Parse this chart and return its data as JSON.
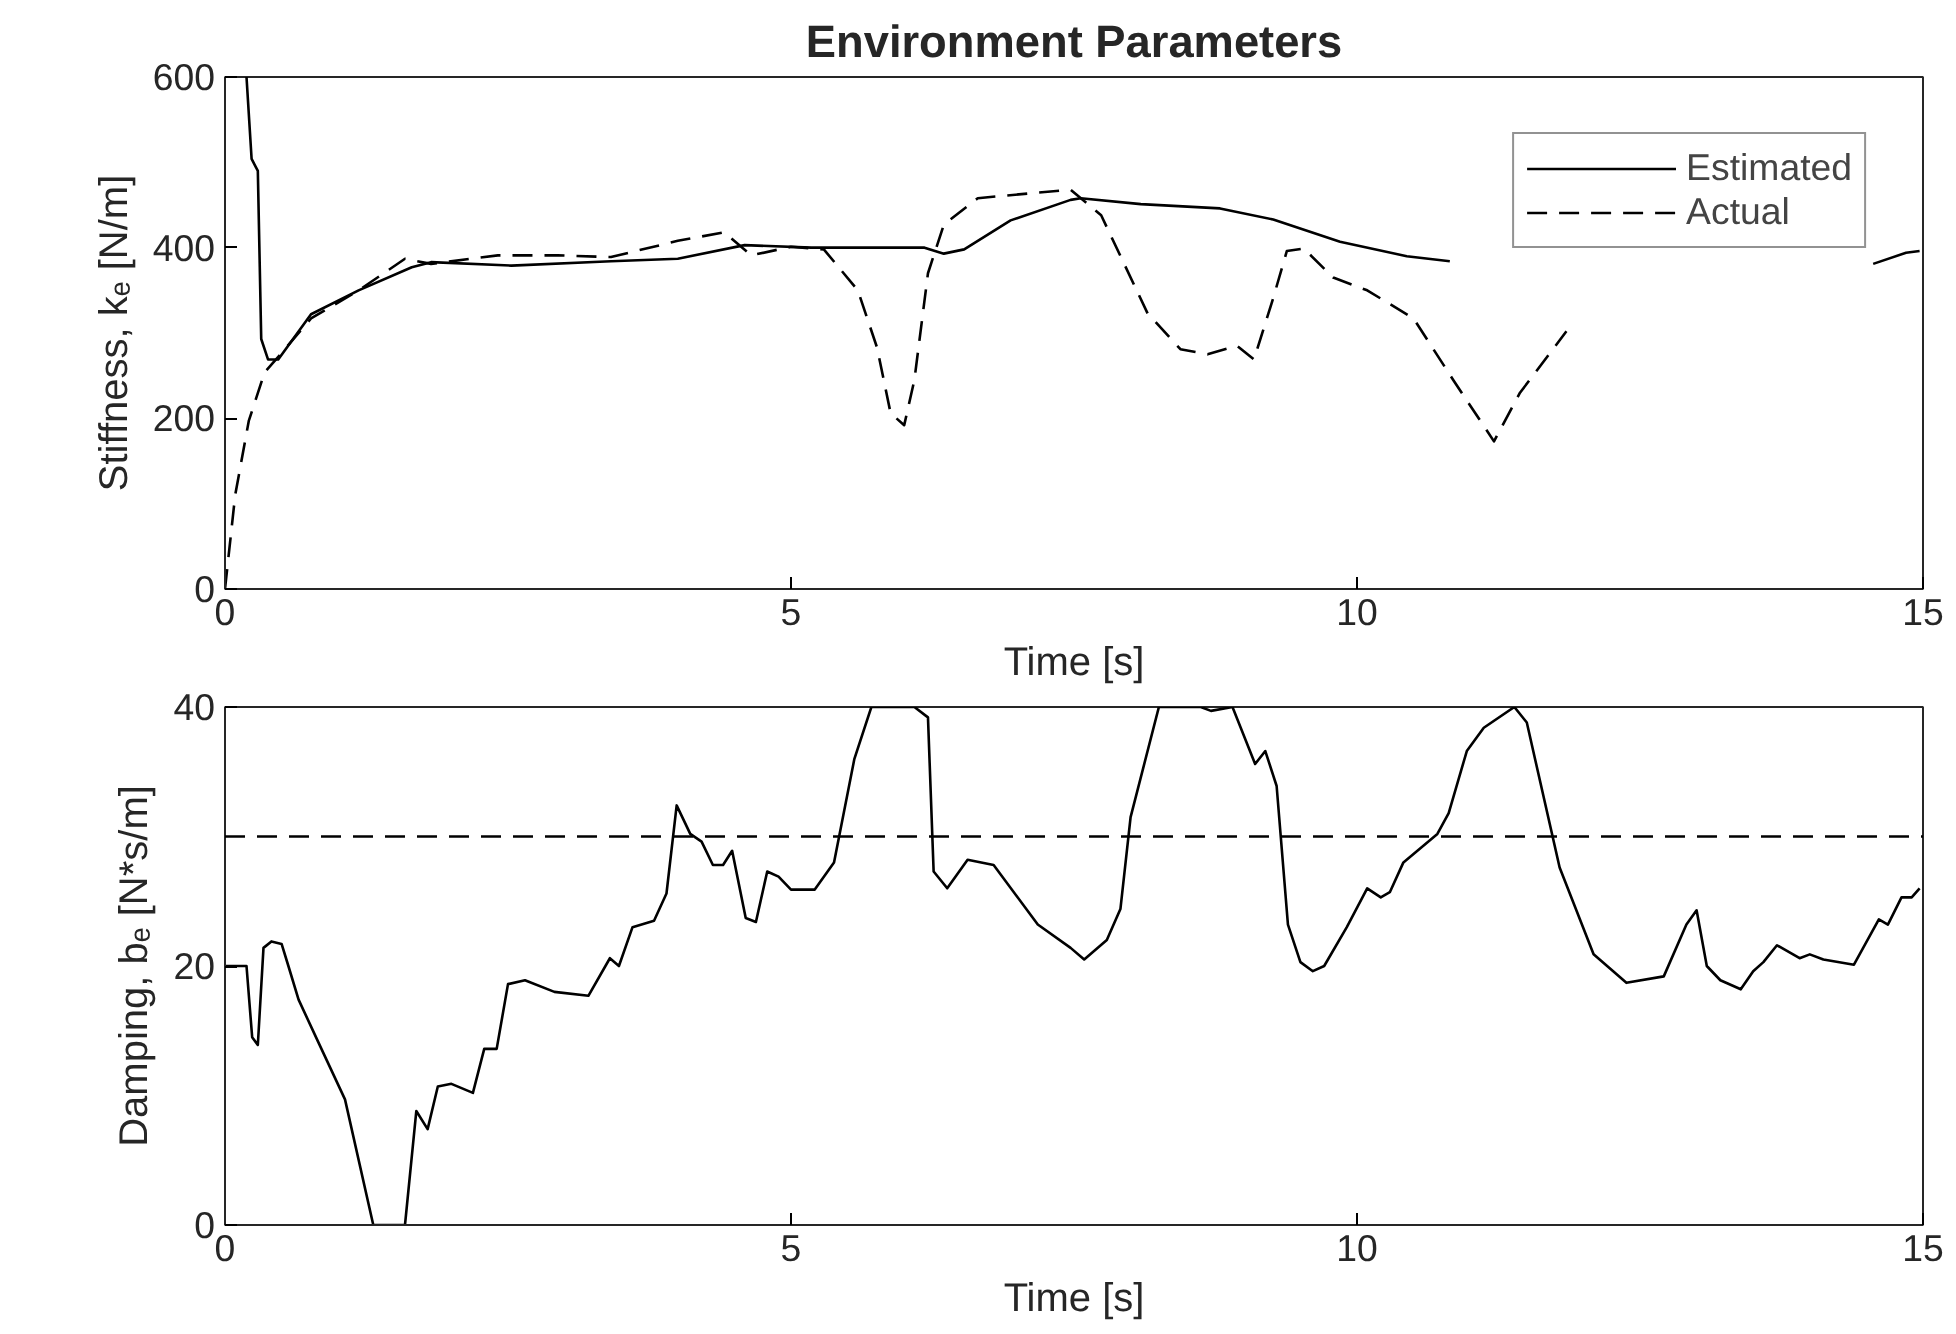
{
  "chart_data": [
    {
      "type": "line",
      "title": "Environment Parameters",
      "xlabel": "Time [s]",
      "ylabel": "Stiffness, kₑ [N/m]",
      "xlim": [
        0,
        15
      ],
      "xticks": [
        0,
        5,
        10,
        15
      ],
      "ylim": [
        0,
        600
      ],
      "yticks": [
        0,
        200,
        400,
        600
      ],
      "grid": false,
      "legend": "top right",
      "series": [
        {
          "name": "Estimated",
          "color": "#000000",
          "line_style": "solid",
          "x": [
            0.19,
            0.235,
            0.29,
            0.32,
            0.38,
            0.47,
            0.76,
            1.18,
            1.65,
            1.82,
            2.53,
            3.41,
            4.0,
            4.59,
            5.18,
            6.18,
            6.35,
            6.53,
            6.94,
            7.47,
            7.56,
            8.09,
            8.79,
            9.26,
            9.85,
            10.44,
            10.82,
            11.0,
            14.4,
            14.56,
            14.85,
            14.97
          ],
          "values": [
            600,
            504,
            490,
            293,
            269,
            269,
            322,
            350,
            377,
            383,
            379,
            384,
            387,
            403,
            400,
            400,
            393,
            398,
            432,
            456,
            458,
            451,
            446,
            433,
            407,
            390,
            384,
            null,
            null,
            381,
            394,
            396
          ]
        },
        {
          "name": "Actual",
          "color": "#000000",
          "line_style": "dashed",
          "x": [
            0,
            0.09,
            0.21,
            0.35,
            0.47,
            0.76,
            1.18,
            1.59,
            1.82,
            2.41,
            2.94,
            3.41,
            4.0,
            4.41,
            4.65,
            5.0,
            5.29,
            5.59,
            5.76,
            5.88,
            6.0,
            6.09,
            6.21,
            6.35,
            6.65,
            7.47,
            7.74,
            8.15,
            8.44,
            8.68,
            8.94,
            9.09,
            9.26,
            9.38,
            9.53,
            9.79,
            10.09,
            10.5,
            10.85,
            11.21,
            11.44,
            11.85
          ],
          "values": [
            0,
            110,
            197,
            254,
            272,
            317,
            350,
            387,
            381,
            391,
            391,
            389,
            408,
            418,
            391,
            401,
            398,
            350,
            283,
            206,
            192,
            245,
            370,
            427,
            458,
            468,
            438,
            323,
            281,
            275,
            285,
            269,
            341,
            396,
            399,
            365,
            350,
            317,
            245,
            173,
            230,
            302
          ]
        }
      ]
    },
    {
      "type": "line",
      "xlabel": "Time [s]",
      "ylabel": "Damping, bₑ [N*s/m]",
      "xlim": [
        0,
        15
      ],
      "xticks": [
        0,
        5,
        10,
        15
      ],
      "ylim": [
        0,
        40
      ],
      "yticks": [
        0,
        20,
        40
      ],
      "grid": false,
      "legend": false,
      "ref_lines": [
        {
          "axis": "y",
          "value": 30,
          "color": "#000000",
          "line_style": "dashed"
        }
      ],
      "series": [
        {
          "color": "#000000",
          "line_style": "solid",
          "x": [
            0,
            0.19,
            0.24,
            0.29,
            0.34,
            0.41,
            0.5,
            0.56,
            0.65,
            0.82,
            1.06,
            1.31,
            1.59,
            1.69,
            1.79,
            1.88,
            2.0,
            2.19,
            2.29,
            2.4,
            2.5,
            2.65,
            2.91,
            3.21,
            3.4,
            3.48,
            3.6,
            3.79,
            3.9,
            3.99,
            4.11,
            4.21,
            4.31,
            4.4,
            4.48,
            4.6,
            4.69,
            4.79,
            4.89,
            5.0,
            5.21,
            5.38,
            5.56,
            5.71,
            6.09,
            6.21,
            6.26,
            6.38,
            6.56,
            6.79,
            7.18,
            7.47,
            7.59,
            7.79,
            7.91,
            8.0,
            8.25,
            8.62,
            8.71,
            8.9,
            9.1,
            9.19,
            9.29,
            9.39,
            9.5,
            9.61,
            9.71,
            9.91,
            10.09,
            10.21,
            10.29,
            10.41,
            10.71,
            10.81,
            10.97,
            11.12,
            11.39,
            11.5,
            11.79,
            12.09,
            12.38,
            12.71,
            12.91,
            13.0,
            13.09,
            13.21,
            13.39,
            13.5,
            13.59,
            13.71,
            13.91,
            14.0,
            14.12,
            14.39,
            14.61,
            14.69,
            14.81,
            14.9,
            14.97
          ],
          "values": [
            20,
            20,
            14.5,
            13.9,
            21.4,
            21.9,
            21.7,
            20,
            17.4,
            14.2,
            9.7,
            0,
            0,
            8.8,
            7.4,
            10.7,
            10.9,
            10.2,
            13.6,
            13.6,
            18.6,
            18.9,
            18,
            17.7,
            20.6,
            20,
            23,
            23.5,
            25.6,
            32.4,
            30.2,
            29.6,
            27.8,
            27.8,
            28.9,
            23.7,
            23.4,
            27.3,
            26.9,
            25.9,
            25.9,
            28,
            36,
            40,
            40,
            39.2,
            27.3,
            26,
            28.2,
            27.8,
            23.2,
            21.4,
            20.5,
            22,
            24.4,
            31.5,
            40,
            40,
            39.7,
            40,
            35.6,
            36.6,
            33.9,
            23.2,
            20.3,
            19.6,
            20,
            23,
            26,
            25.3,
            25.7,
            28,
            30.2,
            31.8,
            36.6,
            38.4,
            40,
            38.8,
            27.6,
            20.9,
            18.7,
            19.2,
            23.2,
            24.3,
            20,
            18.9,
            18.2,
            19.6,
            20.3,
            21.6,
            20.6,
            20.9,
            20.5,
            20.1,
            23.6,
            23.2,
            25.3,
            25.3,
            26
          ]
        }
      ]
    }
  ]
}
